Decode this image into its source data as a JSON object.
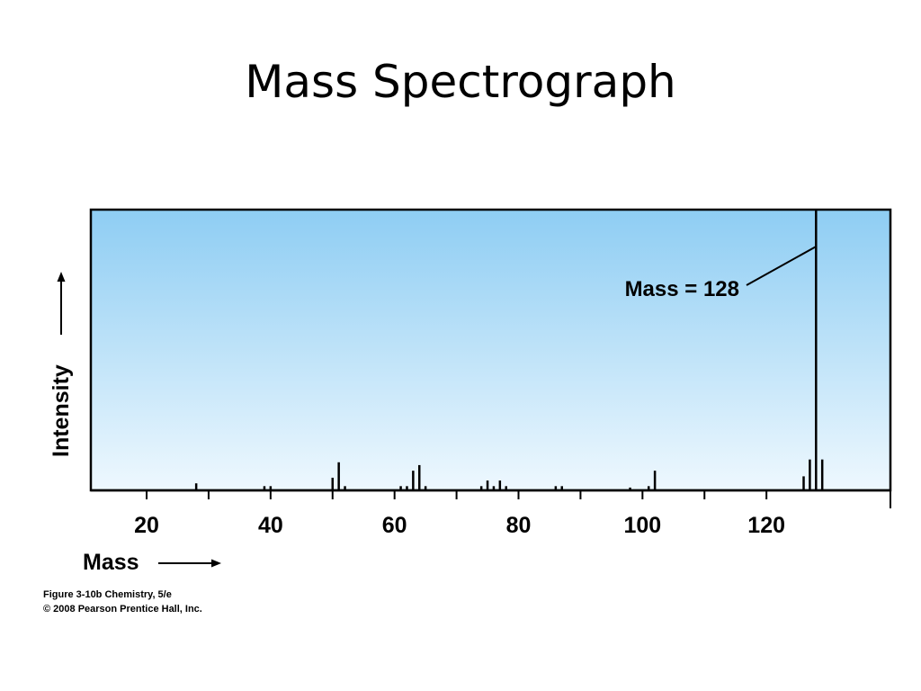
{
  "slide": {
    "title": "Mass Spectrograph",
    "caption_line1": "Figure 3-10b  Chemistry, 5/e",
    "caption_line2": "© 2008 Pearson Prentice Hall, Inc."
  },
  "chart_data": {
    "type": "bar",
    "xlabel": "Mass",
    "ylabel": "Intensity",
    "xlim": [
      11,
      140
    ],
    "ylim": [
      0,
      100
    ],
    "x_ticks_major": [
      20,
      40,
      60,
      80,
      100,
      120
    ],
    "x_ticks_minor": [
      30,
      50,
      70,
      90,
      110
    ],
    "grid": false,
    "annotation": {
      "text": "Mass = 128",
      "x": 128
    },
    "colors": {
      "bar": "#000000",
      "bg_top": "#8ecdf3",
      "bg_bottom": "#eef8fe"
    },
    "peaks": [
      {
        "mass": 28,
        "intensity": 2.5
      },
      {
        "mass": 39,
        "intensity": 1.5
      },
      {
        "mass": 40,
        "intensity": 1.5
      },
      {
        "mass": 50,
        "intensity": 4.5
      },
      {
        "mass": 51,
        "intensity": 10
      },
      {
        "mass": 52,
        "intensity": 1.5
      },
      {
        "mass": 61,
        "intensity": 1.5
      },
      {
        "mass": 62,
        "intensity": 1.5
      },
      {
        "mass": 63,
        "intensity": 7
      },
      {
        "mass": 64,
        "intensity": 9
      },
      {
        "mass": 65,
        "intensity": 1.5
      },
      {
        "mass": 74,
        "intensity": 1.5
      },
      {
        "mass": 75,
        "intensity": 3.5
      },
      {
        "mass": 76,
        "intensity": 1.5
      },
      {
        "mass": 77,
        "intensity": 3.5
      },
      {
        "mass": 78,
        "intensity": 1.5
      },
      {
        "mass": 86,
        "intensity": 1.5
      },
      {
        "mass": 87,
        "intensity": 1.5
      },
      {
        "mass": 98,
        "intensity": 1
      },
      {
        "mass": 101,
        "intensity": 1.5
      },
      {
        "mass": 102,
        "intensity": 7
      },
      {
        "mass": 126,
        "intensity": 5
      },
      {
        "mass": 127,
        "intensity": 11
      },
      {
        "mass": 128,
        "intensity": 100
      },
      {
        "mass": 129,
        "intensity": 11
      }
    ]
  }
}
